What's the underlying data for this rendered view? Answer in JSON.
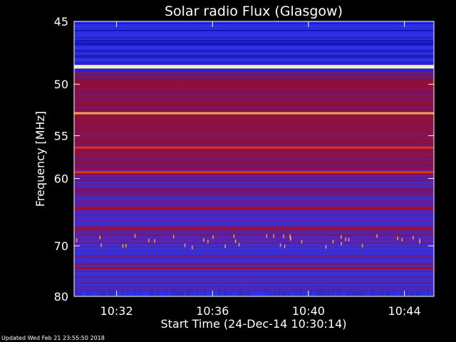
{
  "chart_data": {
    "type": "heatmap",
    "title": "Solar radio Flux (Glasgow)",
    "xlabel": "Start Time (24-Dec-14 10:30:14)",
    "ylabel": "Frequency [MHz]",
    "x_ticks": [
      "10:32",
      "10:36",
      "10:40",
      "10:44"
    ],
    "x_tick_minutes": [
      1.77,
      5.77,
      9.77,
      13.77
    ],
    "x_range_minutes": [
      0,
      15
    ],
    "y_ticks": [
      45,
      50,
      55,
      60,
      70,
      80
    ],
    "y_range": [
      45,
      80
    ],
    "y_scale": "reciprocal",
    "colormap": [
      "#000070",
      "#1a1acc",
      "#3a3af0",
      "#6a1fa0",
      "#8a1050",
      "#b00c18",
      "#e83010",
      "#ffa040",
      "#fff0c0"
    ],
    "bands": [
      {
        "mhz": 48.5,
        "level": "very-high"
      },
      {
        "mhz": 52.7,
        "level": "high"
      },
      {
        "mhz": 56.3,
        "level": "medium-high"
      },
      {
        "mhz": 59.2,
        "level": "medium-high"
      },
      {
        "mhz": 64.0,
        "level": "medium"
      },
      {
        "mhz": 67.0,
        "level": "medium"
      },
      {
        "mhz": 74.0,
        "level": "medium"
      }
    ]
  },
  "footer": "Updated Wed Feb 21 23:55:50 2018"
}
